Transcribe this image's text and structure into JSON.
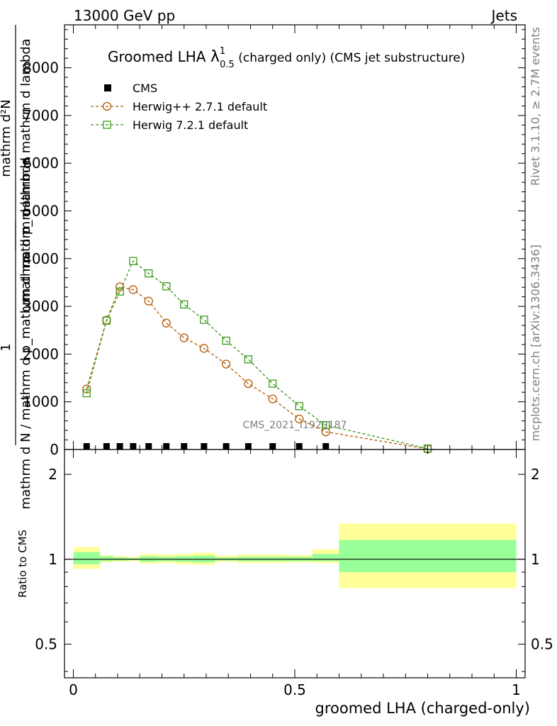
{
  "header": {
    "left": "13000 GeV pp",
    "right": "Jets"
  },
  "side_labels": {
    "rivet": "Rivet 3.1.10, ≥ 2.7M events",
    "mcplots": "mcplots.cern.ch [arXiv:1306.3436]"
  },
  "watermark": "CMS_2021_I1920187",
  "chart_data": [
    {
      "type": "line",
      "title": {
        "prefix": "Groomed LHA ",
        "lambda": "λ",
        "sup": "1",
        "sub": "0.5",
        "suffix": " (charged only) (CMS jet substructure)"
      },
      "ylabel": {
        "line1": "mathrm d²N",
        "line2": "mathrm d p_mathrm d mathrm d lambda",
        "one": "1",
        "line3": "mathrm d N / mathrm d p_mathrm d mathrm d lambda"
      },
      "ylim": [
        0,
        8900
      ],
      "yticks": [
        0,
        1000,
        2000,
        3000,
        4000,
        5000,
        6000,
        7000,
        8000
      ],
      "ytick_labels": [
        "0",
        "1000",
        "2000",
        "3000",
        "4000",
        "5000",
        "6000",
        "7000",
        "8000"
      ],
      "xlim": [
        -0.02,
        1.02
      ],
      "legend": [
        "CMS",
        "Herwig++ 2.7.1 default",
        "Herwig 7.2.1 default"
      ],
      "legend_position": "top-left",
      "series": [
        {
          "name": "CMS",
          "marker": "filled-square",
          "color": "#000000",
          "x": [
            0.03,
            0.075,
            0.105,
            0.135,
            0.17,
            0.21,
            0.25,
            0.295,
            0.345,
            0.395,
            0.45,
            0.51,
            0.57
          ],
          "values": [
            0,
            0,
            0,
            0,
            0,
            0,
            0,
            0,
            0,
            0,
            0,
            0,
            0
          ]
        },
        {
          "name": "Herwig++ 2.7.1 default",
          "marker": "open-circle",
          "color": "#b35900",
          "x": [
            0.03,
            0.075,
            0.105,
            0.135,
            0.17,
            0.21,
            0.25,
            0.295,
            0.345,
            0.395,
            0.45,
            0.51,
            0.57,
            0.8
          ],
          "values": [
            1270,
            2710,
            3410,
            3350,
            3110,
            2650,
            2340,
            2120,
            1790,
            1380,
            1060,
            640,
            370,
            10
          ]
        },
        {
          "name": "Herwig 7.2.1 default",
          "marker": "open-square",
          "color": "#3a9a1a",
          "x": [
            0.03,
            0.075,
            0.105,
            0.135,
            0.17,
            0.21,
            0.25,
            0.295,
            0.345,
            0.395,
            0.45,
            0.51,
            0.57,
            0.8
          ],
          "values": [
            1180,
            2700,
            3310,
            3950,
            3690,
            3420,
            3040,
            2720,
            2280,
            1890,
            1380,
            910,
            510,
            20
          ]
        }
      ]
    },
    {
      "type": "area",
      "ylabel": "Ratio to CMS",
      "xlabel": "groomed LHA (charged-only)",
      "scale": "log",
      "ylim": [
        0.38,
        2.45
      ],
      "yticks": [
        0.5,
        1,
        2
      ],
      "ytick_labels": [
        "0.5",
        "1",
        "2"
      ],
      "xlim": [
        -0.02,
        1.02
      ],
      "xticks": [
        0,
        0.5,
        1
      ],
      "xtick_labels": [
        "0",
        "0.5",
        "1"
      ],
      "band_colors": {
        "outer": "#ffff99",
        "inner": "#99ff99"
      },
      "bands": [
        {
          "x0": 0.0,
          "x1": 0.06,
          "outer": [
            0.925,
            1.105
          ],
          "inner": [
            0.96,
            1.06
          ]
        },
        {
          "x0": 0.06,
          "x1": 0.09,
          "outer": [
            0.975,
            1.035
          ],
          "inner": [
            0.985,
            1.025
          ]
        },
        {
          "x0": 0.09,
          "x1": 0.12,
          "outer": [
            0.98,
            1.025
          ],
          "inner": [
            0.99,
            1.015
          ]
        },
        {
          "x0": 0.12,
          "x1": 0.15,
          "outer": [
            0.985,
            1.02
          ],
          "inner": [
            0.993,
            1.01
          ]
        },
        {
          "x0": 0.15,
          "x1": 0.19,
          "outer": [
            0.965,
            1.045
          ],
          "inner": [
            0.98,
            1.025
          ]
        },
        {
          "x0": 0.19,
          "x1": 0.23,
          "outer": [
            0.97,
            1.04
          ],
          "inner": [
            0.985,
            1.02
          ]
        },
        {
          "x0": 0.23,
          "x1": 0.27,
          "outer": [
            0.96,
            1.045
          ],
          "inner": [
            0.98,
            1.025
          ]
        },
        {
          "x0": 0.27,
          "x1": 0.32,
          "outer": [
            0.955,
            1.055
          ],
          "inner": [
            0.975,
            1.03
          ]
        },
        {
          "x0": 0.32,
          "x1": 0.37,
          "outer": [
            0.98,
            1.03
          ],
          "inner": [
            0.99,
            1.015
          ]
        },
        {
          "x0": 0.37,
          "x1": 0.42,
          "outer": [
            0.97,
            1.04
          ],
          "inner": [
            0.985,
            1.02
          ]
        },
        {
          "x0": 0.42,
          "x1": 0.48,
          "outer": [
            0.97,
            1.04
          ],
          "inner": [
            0.985,
            1.02
          ]
        },
        {
          "x0": 0.48,
          "x1": 0.54,
          "outer": [
            0.975,
            1.035
          ],
          "inner": [
            0.985,
            1.02
          ]
        },
        {
          "x0": 0.54,
          "x1": 0.6,
          "outer": [
            0.97,
            1.085
          ],
          "inner": [
            0.985,
            1.045
          ]
        },
        {
          "x0": 0.6,
          "x1": 1.0,
          "outer": [
            0.79,
            1.34
          ],
          "inner": [
            0.9,
            1.17
          ]
        }
      ],
      "reference": 1
    }
  ]
}
